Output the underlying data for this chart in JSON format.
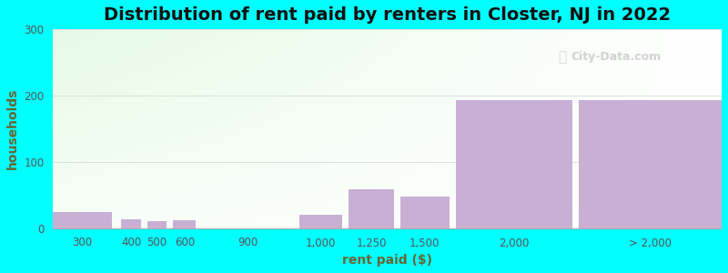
{
  "title": "Distribution of rent paid by renters in Closter, NJ in 2022",
  "xlabel": "rent paid ($)",
  "ylabel": "households",
  "bar_labels": [
    "300",
    "400",
    "500",
    "600",
    "900",
    "1,000",
    "1,250",
    "1,500",
    "2,000",
    "> 2,000"
  ],
  "bar_values": [
    25,
    13,
    10,
    12,
    0,
    20,
    58,
    47,
    193,
    193
  ],
  "bar_color": "#c9afd4",
  "ylim": [
    0,
    300
  ],
  "yticks": [
    0,
    100,
    200,
    300
  ],
  "background_color": "#00ffff",
  "title_fontsize": 14,
  "axis_label_fontsize": 10,
  "tick_fontsize": 8.5,
  "label_color": "#666633",
  "tick_color": "#555555",
  "title_color": "#111111",
  "watermark_text": "City-Data.com",
  "grid_color": "#dddddd",
  "bar_left_edges": [
    0.0,
    1.05,
    1.45,
    1.85,
    2.8,
    3.8,
    4.55,
    5.35,
    6.2,
    8.1
  ],
  "bar_rights": [
    0.9,
    1.35,
    1.75,
    2.2,
    3.2,
    4.45,
    5.25,
    6.1,
    8.0,
    10.3
  ]
}
